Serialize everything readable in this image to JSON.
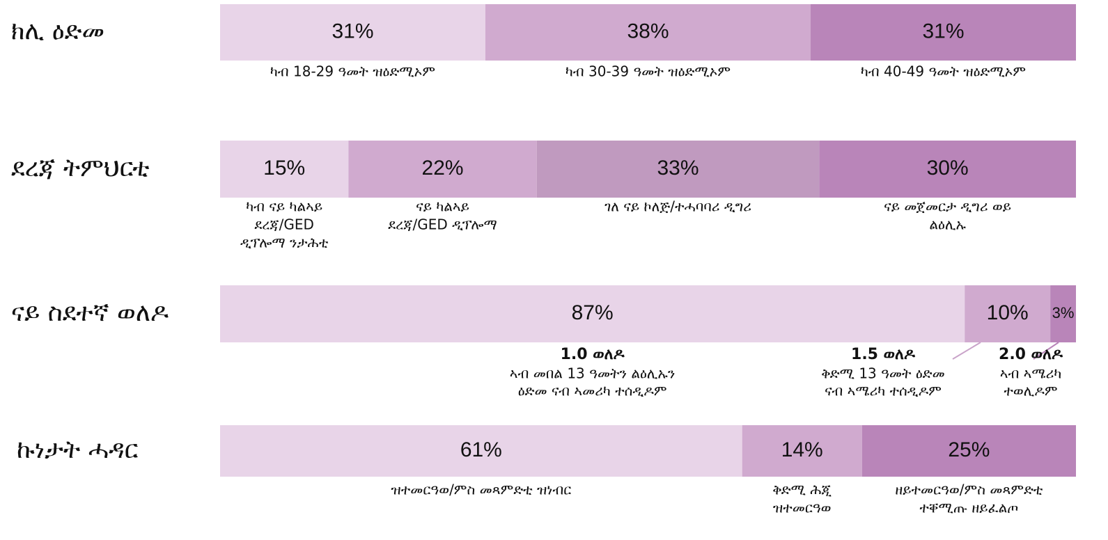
{
  "chart_data": [
    {
      "type": "bar",
      "stacked": true,
      "title": "ክሊ ዕድመ",
      "xlim": [
        0,
        100
      ],
      "values": [
        31,
        38,
        31
      ],
      "value_labels": [
        "31%",
        "38%",
        "31%"
      ],
      "colors": [
        "#e8d4e8",
        "#d0aacf",
        "#b985b9"
      ],
      "categories": [
        [
          "ካብ 18-29 ዓመት ዝዕድሚኦም"
        ],
        [
          "ካብ 30-39 ዓመት ዝዕድሚኦም"
        ],
        [
          "ካብ 40-49 ዓመት ዝዕድሚኦም"
        ]
      ]
    },
    {
      "type": "bar",
      "stacked": true,
      "title": "ደረጃ ትምህርቲ",
      "xlim": [
        0,
        100
      ],
      "values": [
        15,
        22,
        33,
        30
      ],
      "value_labels": [
        "15%",
        "22%",
        "33%",
        "30%"
      ],
      "colors": [
        "#e8d4e8",
        "#d0aacf",
        "#c09abf",
        "#b985b9"
      ],
      "categories": [
        [
          "ካብ ናይ ካልኣይ",
          "ደረጃ/GED",
          "ዲፕሎማ ንታሕቲ"
        ],
        [
          "ናይ ካልኣይ",
          "ደረጃ/GED ዲፕሎማ"
        ],
        [
          "ገለ ናይ ኮለጅ/ተሓባባሪ ዲግሪ"
        ],
        [
          "ናይ መጀመርታ ዲግሪ ወይ",
          "ልዕሊኡ"
        ]
      ]
    },
    {
      "type": "bar",
      "stacked": true,
      "title": "ናይ ስደተኛ ወለዶ",
      "xlim": [
        0,
        100
      ],
      "values": [
        87,
        10,
        3
      ],
      "value_labels": [
        "87%",
        "10%",
        "3%"
      ],
      "colors": [
        "#e8d4e8",
        "#d0aacf",
        "#b985b9"
      ],
      "categories": [
        [
          "1.0 ወለዶ"
        ],
        [
          "1.5 ወለዶ"
        ],
        [
          "2.0 ወለዶ"
        ]
      ],
      "descriptions": [
        [
          "ኣብ መበል 13 ዓመትን ልዕሊኡን",
          "ዕድመ ናብ ኣመሪካ ተሰዲዶም"
        ],
        [
          "ቅድሚ 13 ዓመት ዕድመ",
          "ናብ ኣሜሪካ ተሰዲዶም"
        ],
        [
          "ኣብ ኣሜሪካ",
          "ተወሊዶም"
        ]
      ]
    },
    {
      "type": "bar",
      "stacked": true,
      "title": "ኩነታት ሓዳር",
      "xlim": [
        0,
        100
      ],
      "values": [
        61,
        14,
        25
      ],
      "value_labels": [
        "61%",
        "14%",
        "25%"
      ],
      "colors": [
        "#e8d4e8",
        "#d0aacf",
        "#b985b9"
      ],
      "categories": [
        [
          "ዝተመርዓወ/ምስ መጻምድቲ ዝነብር"
        ],
        [
          "ቅድሚ ሕጂ",
          "ዝተመርዓወ"
        ],
        [
          "ዘይተመርዓወ/ምስ መጻምድቲ",
          "ተቐሚጡ ዘይፈልጦ"
        ]
      ]
    }
  ]
}
